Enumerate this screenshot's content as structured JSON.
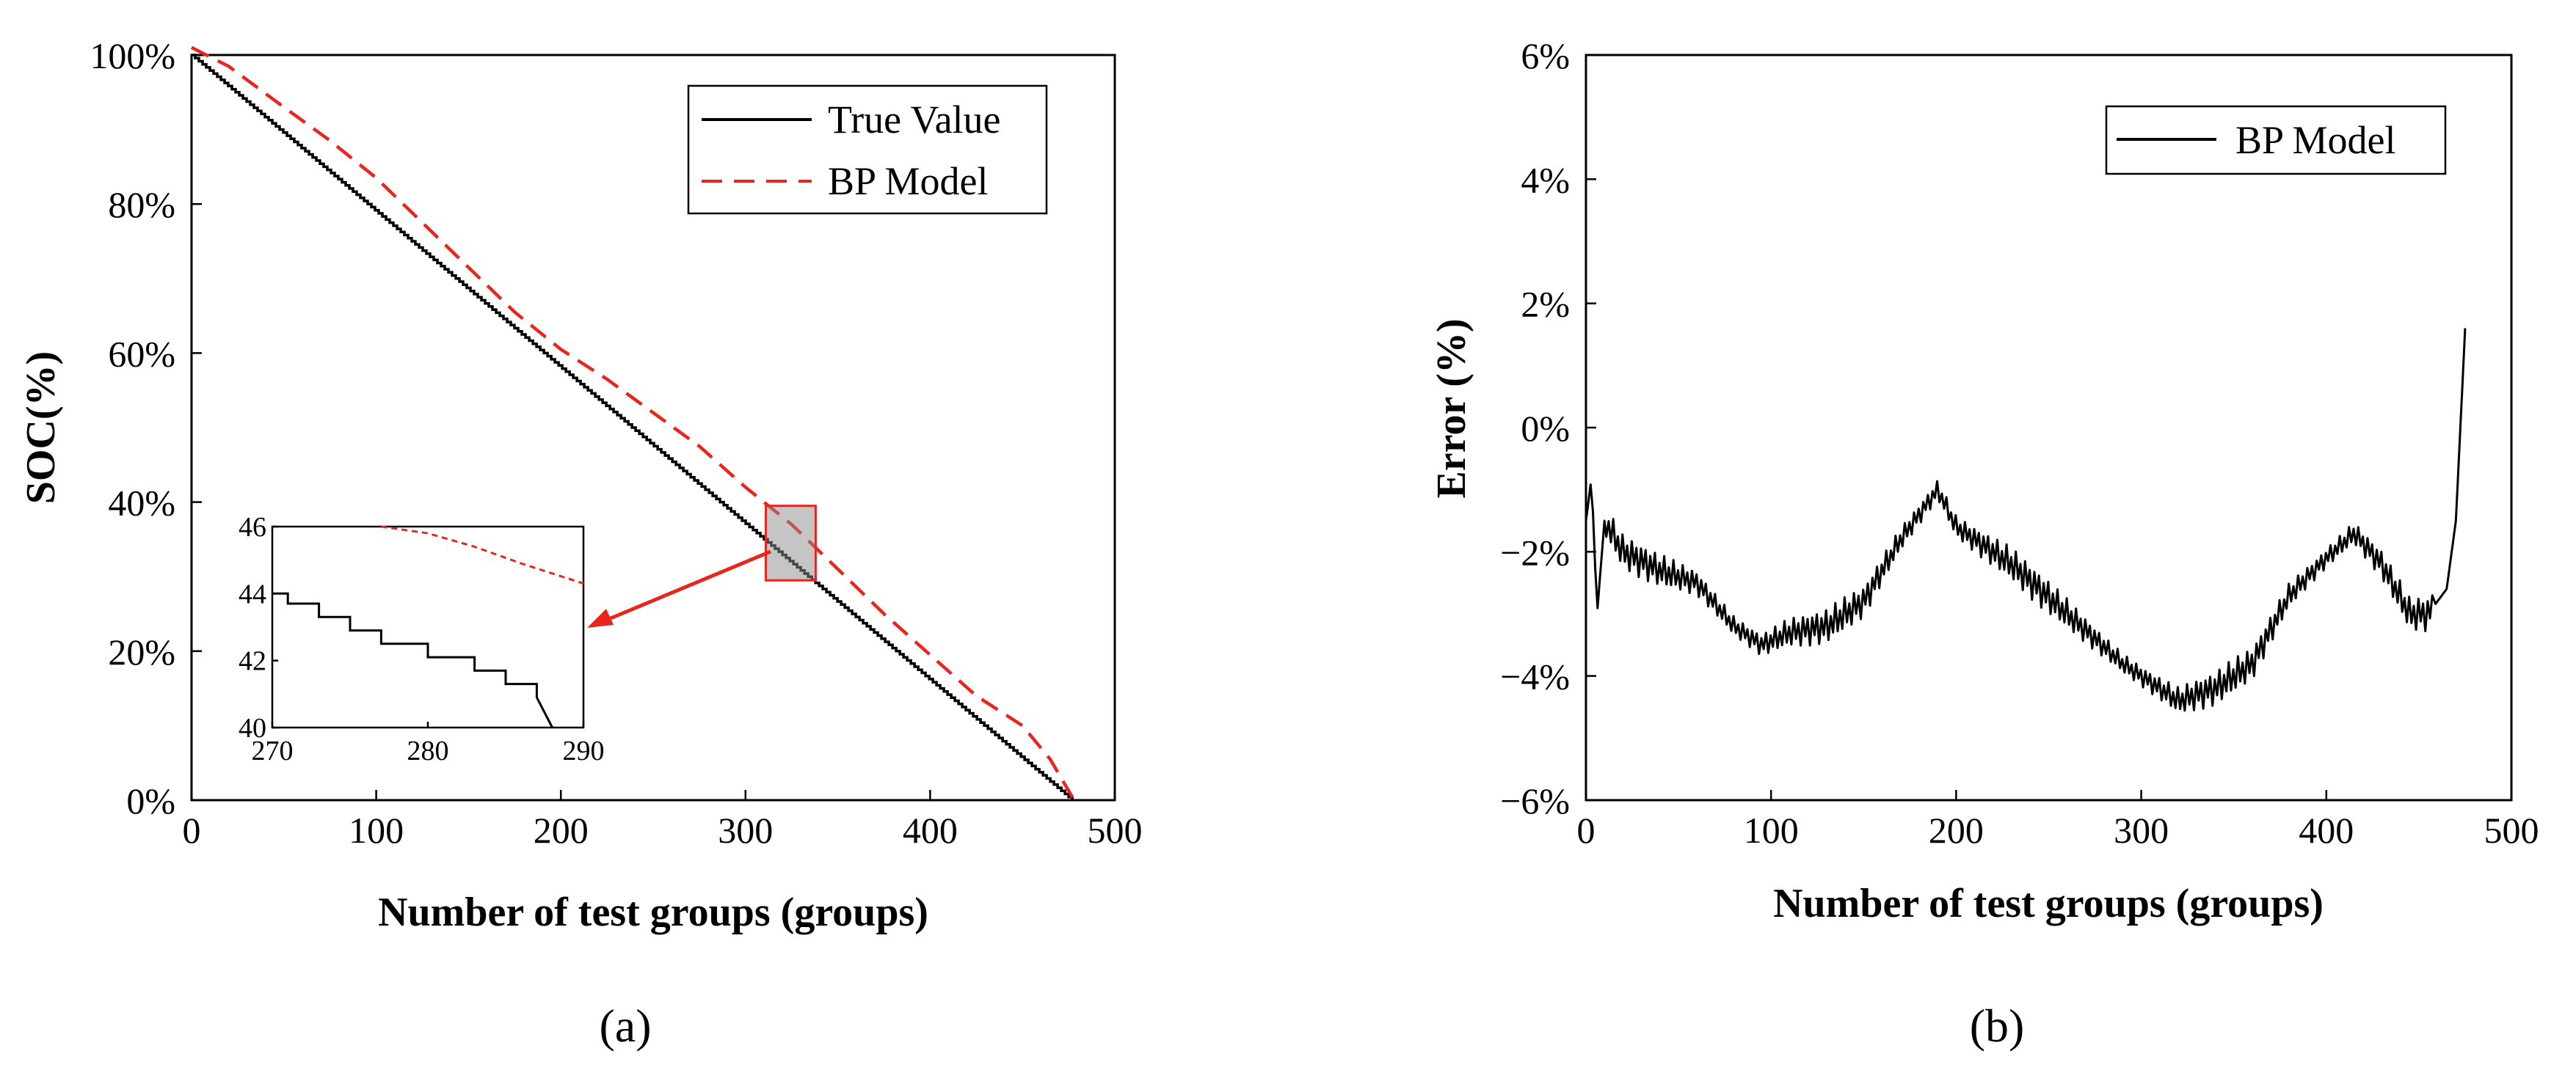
{
  "figure": {
    "panel_a_label": "(a)",
    "panel_b_label": "(b)"
  },
  "chart_data": [
    {
      "id": "a",
      "type": "line",
      "xlabel": "Number of test groups (groups)",
      "ylabel": "SOC(%)",
      "xlim": [
        0,
        500
      ],
      "ylim": [
        0,
        100
      ],
      "xticks": [
        0,
        100,
        200,
        300,
        400,
        500
      ],
      "yticks": [
        0,
        20,
        40,
        60,
        80,
        100
      ],
      "ytick_labels": [
        "0%",
        "20%",
        "40%",
        "60%",
        "80%",
        "100%"
      ],
      "legend": {
        "position": "top-right",
        "entries": [
          "True Value",
          "BP Model"
        ]
      },
      "series": [
        {
          "name": "True Value",
          "color": "#000000",
          "style": "solid",
          "x": [
            0,
            477
          ],
          "y": [
            100,
            0
          ],
          "stepped": true
        },
        {
          "name": "BP Model",
          "color": "#e8261e",
          "style": "dashed",
          "x": [
            0,
            20,
            50,
            75,
            100,
            125,
            150,
            175,
            200,
            225,
            250,
            275,
            300,
            325,
            350,
            375,
            400,
            425,
            450,
            465,
            478
          ],
          "y": [
            101,
            98.5,
            93,
            88.5,
            83.5,
            77.5,
            71.5,
            65.5,
            60.5,
            56.5,
            52,
            47.5,
            42,
            37,
            31,
            25,
            19.5,
            14,
            10,
            5.5,
            0
          ]
        }
      ],
      "highlight_box": {
        "x_range": [
          311,
          338
        ],
        "y_range": [
          29.5,
          39.5
        ]
      },
      "inset": {
        "xlim": [
          270,
          290
        ],
        "ylim": [
          40,
          46
        ],
        "xticks": [
          270,
          280,
          290
        ],
        "yticks": [
          40,
          42,
          44,
          46
        ],
        "series": [
          {
            "name": "True Value",
            "color": "#000000",
            "style": "solid",
            "x": [
              270,
              271,
              271,
              273,
              273,
              275,
              275,
              277,
              277,
              280,
              280,
              283,
              283,
              285,
              285,
              287,
              287,
              288
            ],
            "y": [
              44,
              44,
              43.7,
              43.7,
              43.3,
              43.3,
              42.9,
              42.9,
              42.5,
              42.5,
              42.1,
              42.1,
              41.7,
              41.7,
              41.3,
              41.3,
              40.9,
              40
            ]
          },
          {
            "name": "BP Model",
            "color": "#e8261e",
            "style": "dashed",
            "x": [
              277,
              280,
              283,
              286,
              290
            ],
            "y": [
              46,
              45.8,
              45.4,
              44.9,
              44.3
            ]
          }
        ]
      }
    },
    {
      "id": "b",
      "type": "line",
      "xlabel": "Number of test groups (groups)",
      "ylabel": "Error (%)",
      "xlim": [
        0,
        500
      ],
      "ylim": [
        -6,
        6
      ],
      "xticks": [
        0,
        100,
        200,
        300,
        400,
        500
      ],
      "yticks": [
        -6,
        -4,
        -2,
        0,
        2,
        4,
        6
      ],
      "ytick_labels": [
        "−6%",
        "−4%",
        "−2%",
        "0%",
        "2%",
        "4%",
        "6%"
      ],
      "legend": {
        "position": "top-right",
        "entries": [
          "BP Model"
        ]
      },
      "series": [
        {
          "name": "BP Model",
          "color": "#000000",
          "style": "solid",
          "noisy": true,
          "x": [
            0,
            3,
            6,
            10,
            20,
            40,
            60,
            80,
            95,
            110,
            130,
            150,
            170,
            190,
            200,
            230,
            260,
            290,
            320,
            340,
            360,
            380,
            400,
            415,
            430,
            445,
            455,
            465,
            470,
            475
          ],
          "y": [
            -1.5,
            -0.8,
            -3.0,
            -1.5,
            -2.0,
            -2.3,
            -2.5,
            -3.2,
            -3.5,
            -3.3,
            -3.2,
            -2.8,
            -1.8,
            -1.0,
            -1.6,
            -2.2,
            -3.0,
            -3.8,
            -4.4,
            -4.2,
            -3.8,
            -2.7,
            -2.1,
            -1.7,
            -2.2,
            -3.0,
            -3.0,
            -2.6,
            -1.5,
            1.6
          ]
        }
      ]
    }
  ]
}
